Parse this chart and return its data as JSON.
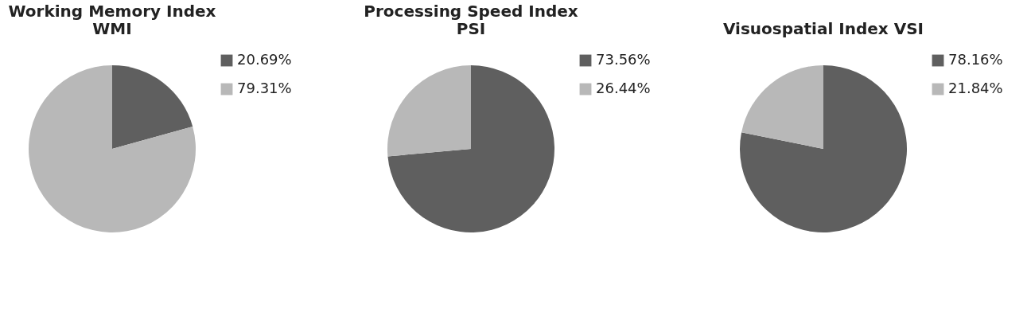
{
  "chart_data": [
    {
      "type": "pie",
      "title": "Working Memory Index\nWMI",
      "categories": [
        "20.69%",
        "79.31%"
      ],
      "values": [
        20.69,
        79.31
      ],
      "colors": [
        "#5f5f5f",
        "#b8b8b8"
      ],
      "legend": "right"
    },
    {
      "type": "pie",
      "title": "Processing Speed Index\nPSI",
      "categories": [
        "73.56%",
        "26.44%"
      ],
      "values": [
        73.56,
        26.44
      ],
      "colors": [
        "#5f5f5f",
        "#b8b8b8"
      ],
      "legend": "right"
    },
    {
      "type": "pie",
      "title": "Visuospatial Index VSI",
      "categories": [
        "78.16%",
        "21.84%"
      ],
      "values": [
        78.16,
        21.84
      ],
      "colors": [
        "#5f5f5f",
        "#b8b8b8"
      ],
      "legend": "right"
    }
  ]
}
